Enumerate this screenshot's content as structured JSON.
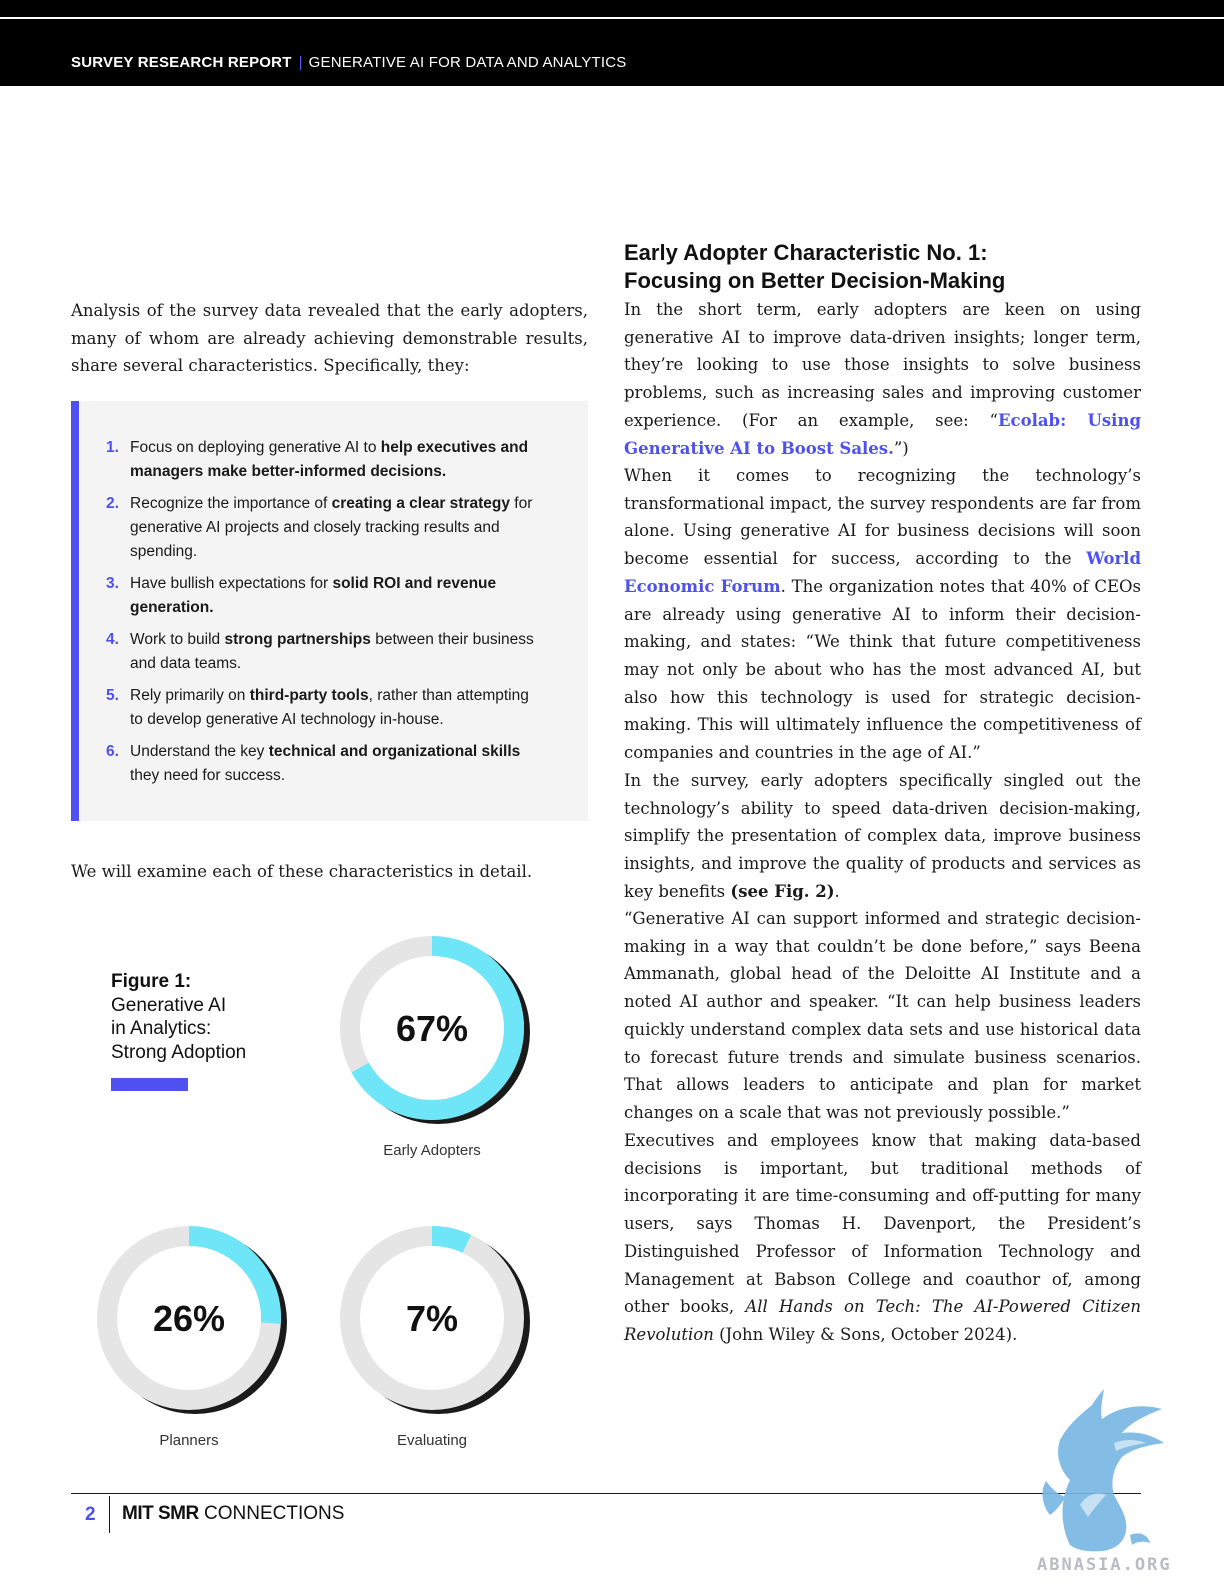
{
  "header": {
    "report_type": "SURVEY RESEARCH REPORT",
    "separator": "|",
    "report_title": "GENERATIVE AI FOR DATA AND ANALYTICS"
  },
  "left": {
    "intro": "Analysis of the survey data revealed that the early adopters, many of whom are already achieving demonstrable results, share several characteristics. Specifically, they:",
    "characteristics": [
      {
        "num": "1.",
        "pre": "Focus on deploying generative AI to ",
        "bold": "help executives and managers make better-informed decisions.",
        "post": ""
      },
      {
        "num": "2.",
        "pre": "Recognize the importance of ",
        "bold": "creating a clear strategy",
        "post": " for generative AI projects and closely tracking results and spending."
      },
      {
        "num": "3.",
        "pre": "Have bullish expectations for ",
        "bold": "solid ROI and revenue generation.",
        "post": ""
      },
      {
        "num": "4.",
        "pre": "Work to build ",
        "bold": "strong partnerships",
        "post": " between their business and data teams."
      },
      {
        "num": "5.",
        "pre": "Rely primarily on ",
        "bold": "third-party tools",
        "post": ", rather than attempting to develop generative AI technology in-house."
      },
      {
        "num": "6.",
        "pre": "Understand the key ",
        "bold": "technical and organizational skills",
        "post": " they need for success."
      }
    ],
    "examine": "We will examine each of these characteristics in detail."
  },
  "figure": {
    "label": "Figure 1:",
    "title_lines": [
      "Generative AI",
      "in Analytics:",
      "Strong Adoption"
    ],
    "accent_color": "#4f50f2",
    "ring_color": "#6ee6f8",
    "track_color": "#e5e5e5",
    "donuts": [
      {
        "value": 67,
        "display": "67%",
        "label": "Early Adopters"
      },
      {
        "value": 26,
        "display": "26%",
        "label": "Planners"
      },
      {
        "value": 7,
        "display": "7%",
        "label": "Evaluating"
      }
    ]
  },
  "right": {
    "heading_line1": "Early Adopter Characteristic No. 1:",
    "heading_line2": "Focusing on Better Decision-Making",
    "p1_text": "In the short term, early adopters are keen on using generative AI to improve data-driven insights; longer term, they’re looking to use those insights to solve business problems, such as increasing sales and improving customer experience. (For an example, see: “",
    "p1_link": "Ecolab: Using Generative AI to Boost Sales.",
    "p1_end": "”)",
    "p2_text_a": "When it comes to recognizing the technology’s transformational impact, the survey respondents are far from alone. Using generative AI for business decisions will soon become essential for success, according to the ",
    "p2_link": "World Economic Forum",
    "p2_text_b": ". The organization notes that 40% of CEOs are already using generative AI to inform their decision-making, and states: “We think that future competitiveness may not only be about who has the most advanced AI, but also how this technology is used for strategic decision-making. This will ultimately influence the competitiveness of companies and countries in the age of AI.”",
    "p3_text": "In the survey, early adopters specifically singled out the technology’s ability to speed data-driven decision-making, simplify the presentation of complex data, improve business insights, and improve the quality of products and services as key benefits ",
    "p3_ref": "(see Fig. 2)",
    "p3_end": ".",
    "p4_text": "“Generative AI can support informed and strategic decision-making in a way that couldn’t be done before,” says Beena Ammanath, global head of the Deloitte AI Institute and a noted AI author and speaker. “It can help business leaders quickly understand complex data sets and use historical data to forecast future trends and simulate business scenarios. That allows leaders to anticipate and plan for market changes on a scale that was not previously possible.”",
    "p5_text": "Executives and employees know that making data-based decisions is important, but traditional methods of incorporating it are time-consuming and off-putting for many users, says Thomas H. Davenport, the President’s Distinguished Professor of Information Technology and Management at Babson College and coauthor of, among other books, ",
    "p5_book": "All Hands on Tech: The AI-Powered Citizen Revolution",
    "p5_end": " (John Wiley & Sons, October 2024)."
  },
  "footer": {
    "page_number": "2",
    "brand_bold": "MIT SMR",
    "brand_rest": " CONNECTIONS"
  },
  "watermark": {
    "text": "ABNASIA.ORG",
    "color": "#76b6e4"
  }
}
